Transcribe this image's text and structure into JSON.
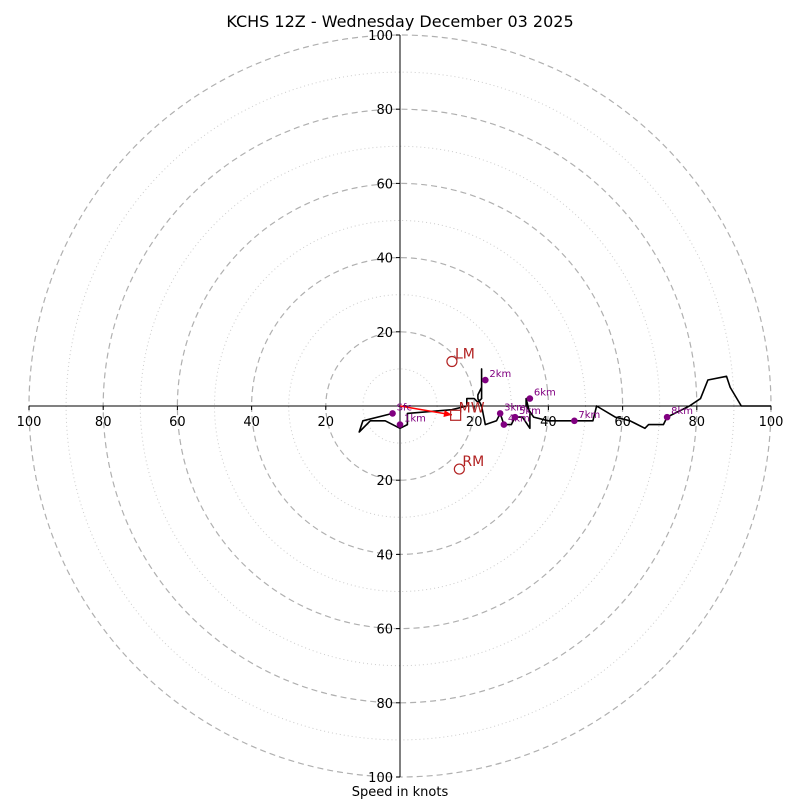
{
  "chart_data": {
    "type": "scatter",
    "subtype": "hodograph",
    "title": "KCHS 12Z - Wednesday December 03 2025",
    "xlabel": "Speed in knots",
    "xlim": [
      -100,
      100
    ],
    "ylim": [
      -100,
      100
    ],
    "major_rings": [
      20,
      40,
      60,
      80,
      100
    ],
    "minor_rings": [
      10,
      30,
      50,
      70,
      90
    ],
    "x_ticks": [
      {
        "value": -100,
        "label": "100"
      },
      {
        "value": -80,
        "label": "80"
      },
      {
        "value": -60,
        "label": "60"
      },
      {
        "value": -40,
        "label": "40"
      },
      {
        "value": -20,
        "label": "20"
      },
      {
        "value": 20,
        "label": "20"
      },
      {
        "value": 40,
        "label": "40"
      },
      {
        "value": 60,
        "label": "60"
      },
      {
        "value": 80,
        "label": "80"
      },
      {
        "value": 100,
        "label": "100"
      }
    ],
    "y_ticks": [
      {
        "value": 100,
        "label": "100"
      },
      {
        "value": 80,
        "label": "80"
      },
      {
        "value": 60,
        "label": "60"
      },
      {
        "value": 40,
        "label": "40"
      },
      {
        "value": 20,
        "label": "20"
      },
      {
        "value": -20,
        "label": "20"
      },
      {
        "value": -40,
        "label": "40"
      },
      {
        "value": -60,
        "label": "60"
      },
      {
        "value": -80,
        "label": "80"
      },
      {
        "value": -100,
        "label": "100"
      }
    ],
    "hodograph_trace": [
      [
        -2,
        -2
      ],
      [
        -10,
        -4
      ],
      [
        -11,
        -7
      ],
      [
        -8,
        -4
      ],
      [
        -4,
        -4
      ],
      [
        0,
        -6
      ],
      [
        2,
        -5
      ],
      [
        2,
        -2
      ],
      [
        14,
        -1
      ],
      [
        18,
        0
      ],
      [
        18,
        2
      ],
      [
        20,
        2
      ],
      [
        21,
        1
      ],
      [
        22,
        2
      ],
      [
        22,
        10
      ],
      [
        22,
        5
      ],
      [
        21,
        3
      ],
      [
        21,
        2
      ],
      [
        22,
        0
      ],
      [
        23,
        -5
      ],
      [
        26,
        -4
      ],
      [
        27,
        -2
      ],
      [
        28,
        -5
      ],
      [
        30,
        -5
      ],
      [
        31,
        -3
      ],
      [
        33,
        -3
      ],
      [
        35,
        -6
      ],
      [
        35,
        -2
      ],
      [
        34,
        2
      ],
      [
        34,
        0
      ],
      [
        36,
        -3
      ],
      [
        40,
        -4
      ],
      [
        47,
        -4
      ],
      [
        52,
        -4
      ],
      [
        53,
        0
      ],
      [
        58,
        -3
      ],
      [
        62,
        -4
      ],
      [
        66,
        -6
      ],
      [
        67,
        -5
      ],
      [
        71,
        -5
      ],
      [
        72,
        -3
      ],
      [
        76,
        -1
      ],
      [
        78,
        0
      ],
      [
        81,
        2
      ],
      [
        83,
        7
      ],
      [
        88,
        8
      ],
      [
        89,
        5
      ],
      [
        92,
        0
      ],
      [
        100,
        0
      ]
    ],
    "height_points": [
      {
        "label": "Sfc",
        "u": -2,
        "v": -2
      },
      {
        "label": "1km",
        "u": 0,
        "v": -5
      },
      {
        "label": "2km",
        "u": 23,
        "v": 7
      },
      {
        "label": "3km",
        "u": 27,
        "v": -2
      },
      {
        "label": "4km",
        "u": 28,
        "v": -5
      },
      {
        "label": "5km",
        "u": 31,
        "v": -3
      },
      {
        "label": "6km",
        "u": 35,
        "v": 2
      },
      {
        "label": "7km",
        "u": 47,
        "v": -4
      },
      {
        "label": "8km",
        "u": 72,
        "v": -3
      }
    ],
    "storm_motions": [
      {
        "label": "LM",
        "u": 14,
        "v": 12,
        "marker": "circle"
      },
      {
        "label": "RM",
        "u": 16,
        "v": -17,
        "marker": "circle"
      },
      {
        "label": "MW",
        "u": 15,
        "v": -2.5,
        "marker": "square"
      }
    ],
    "shear_arrow": {
      "from": [
        0,
        0
      ],
      "to": [
        14,
        -2.4
      ]
    },
    "colors": {
      "trace": "#000000",
      "points": "#800080",
      "markers": "#b22222",
      "arrow": "#ff0000",
      "major_ring": "#b0b0b0",
      "minor_ring": "#cccccc"
    }
  }
}
